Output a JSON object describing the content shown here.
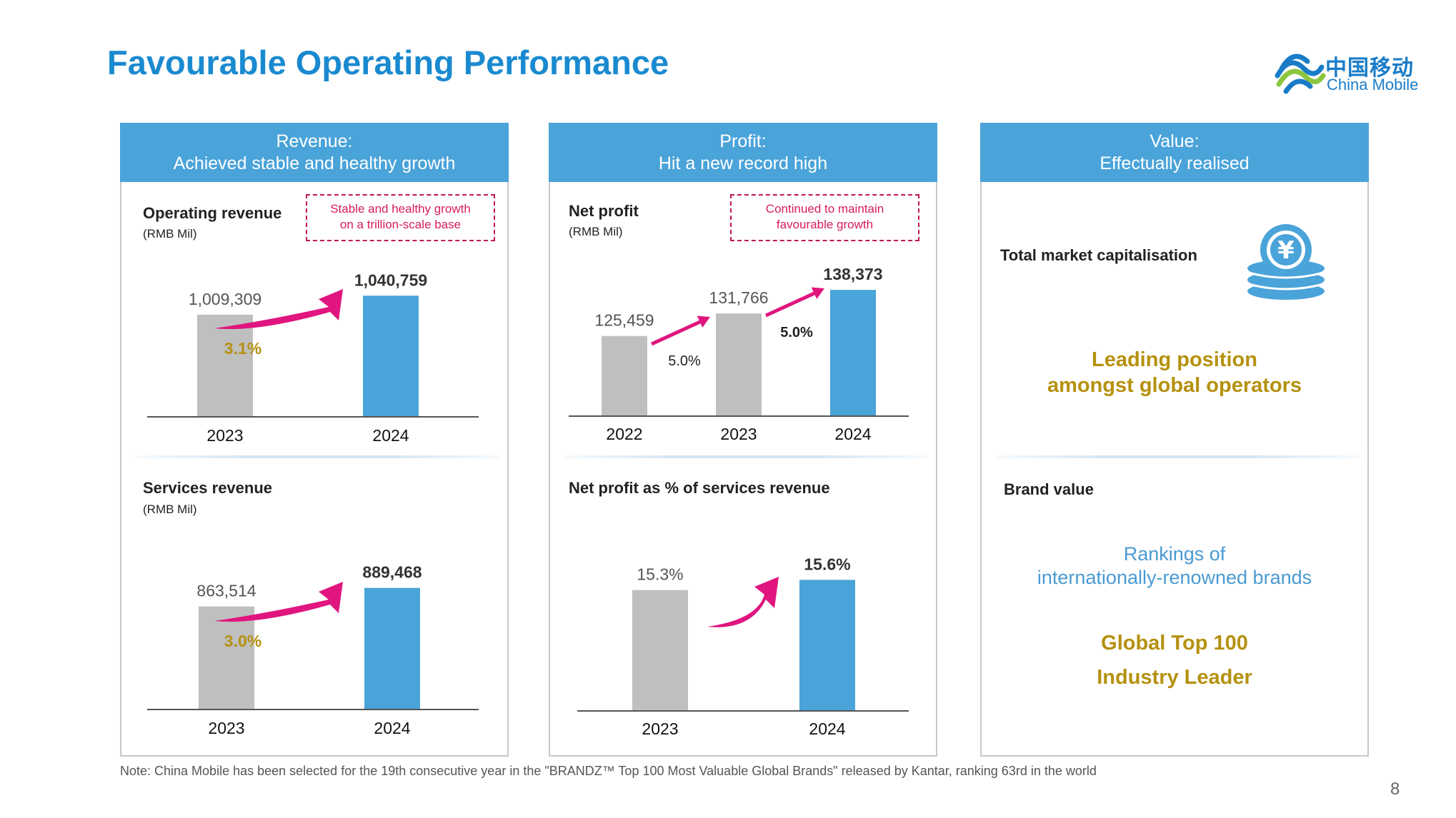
{
  "title": "Favourable Operating Performance",
  "logo": {
    "cn": "中国移动",
    "en": "China Mobile"
  },
  "panels": [
    {
      "head_line1": "Revenue:",
      "head_line2": "Achieved stable and healthy growth"
    },
    {
      "head_line1": "Profit:",
      "head_line2": "Hit a new record high"
    },
    {
      "head_line1": "Value:",
      "head_line2": "Effectually realised"
    }
  ],
  "callouts": {
    "revenue": [
      "Stable and healthy growth",
      "on a trillion-scale base"
    ],
    "profit": [
      "Continued to maintain",
      "favourable growth"
    ]
  },
  "value_panel": {
    "market_cap_label": "Total market capitalisation",
    "leading_line1": "Leading position",
    "leading_line2": "amongst global operators",
    "brand_label": "Brand value",
    "rankings_line1": "Rankings of",
    "rankings_line2": "internationally-renowned brands",
    "global_top": "Global Top 100",
    "industry_leader": "Industry Leader"
  },
  "note": "Note: China Mobile has been selected for the 19th consecutive year in the \"BRANDZ™ Top 100 Most Valuable Global Brands\" released by Kantar, ranking 63rd in the world",
  "page_number": "8",
  "colors": {
    "accent": "#1a8ad0",
    "header": "#4aa3d9",
    "bar_prev": "#bfbfbf",
    "bar_curr": "#4aa3d9",
    "arrow": "#e0157f",
    "gold": "#b5910f"
  },
  "chart_data": [
    {
      "type": "bar",
      "title": "Operating revenue",
      "unit": "(RMB Mil)",
      "categories": [
        "2023",
        "2024"
      ],
      "values": [
        1009309,
        1040759
      ],
      "value_labels": [
        "1,009,309",
        "1,040,759"
      ],
      "growth": [
        "3.1%"
      ]
    },
    {
      "type": "bar",
      "title": "Services revenue",
      "unit": "(RMB Mil)",
      "categories": [
        "2023",
        "2024"
      ],
      "values": [
        863514,
        889468
      ],
      "value_labels": [
        "863,514",
        "889,468"
      ],
      "growth": [
        "3.0%"
      ]
    },
    {
      "type": "bar",
      "title": "Net profit",
      "unit": "(RMB Mil)",
      "categories": [
        "2022",
        "2023",
        "2024"
      ],
      "values": [
        125459,
        131766,
        138373
      ],
      "value_labels": [
        "125,459",
        "131,766",
        "138,373"
      ],
      "growth": [
        "5.0%",
        "5.0%"
      ]
    },
    {
      "type": "bar",
      "title": "Net profit as % of services revenue",
      "unit": "",
      "categories": [
        "2023",
        "2024"
      ],
      "values": [
        15.3,
        15.6
      ],
      "value_labels": [
        "15.3%",
        "15.6%"
      ],
      "growth": []
    }
  ]
}
